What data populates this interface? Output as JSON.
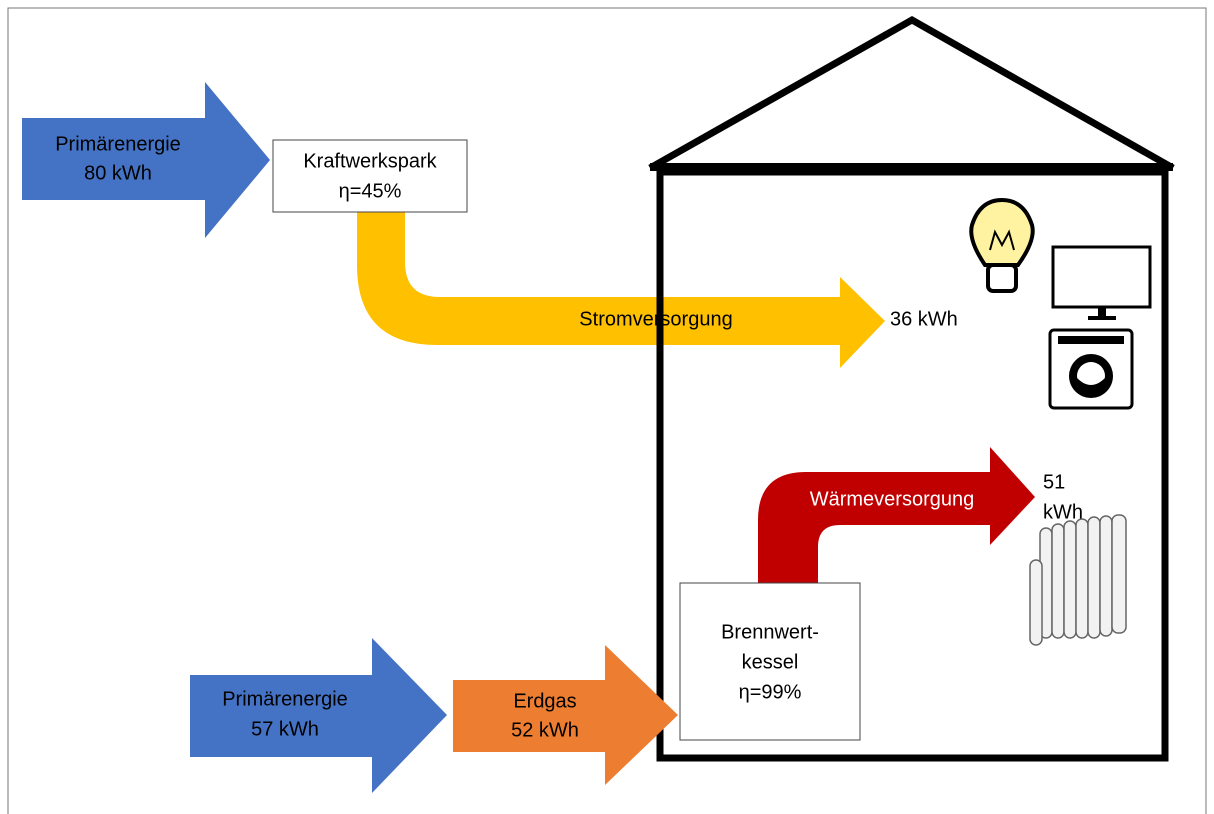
{
  "primary_power": {
    "lines": [
      "Primärenergie",
      "80 kWh"
    ]
  },
  "power_plant": {
    "lines": [
      "Kraftwerkspark",
      "η=45%"
    ]
  },
  "electricity": {
    "label": "Stromversorgung",
    "output": "36 kWh"
  },
  "heat": {
    "label": "Wärmeversorgung",
    "output": [
      "51",
      "kWh"
    ]
  },
  "primary_gas": {
    "lines": [
      "Primärenergie",
      "57 kWh"
    ]
  },
  "gas": {
    "lines": [
      "Erdgas",
      "52 kWh"
    ]
  },
  "boiler": {
    "lines": [
      "Brennwert-",
      "kessel",
      "η=99%"
    ]
  }
}
